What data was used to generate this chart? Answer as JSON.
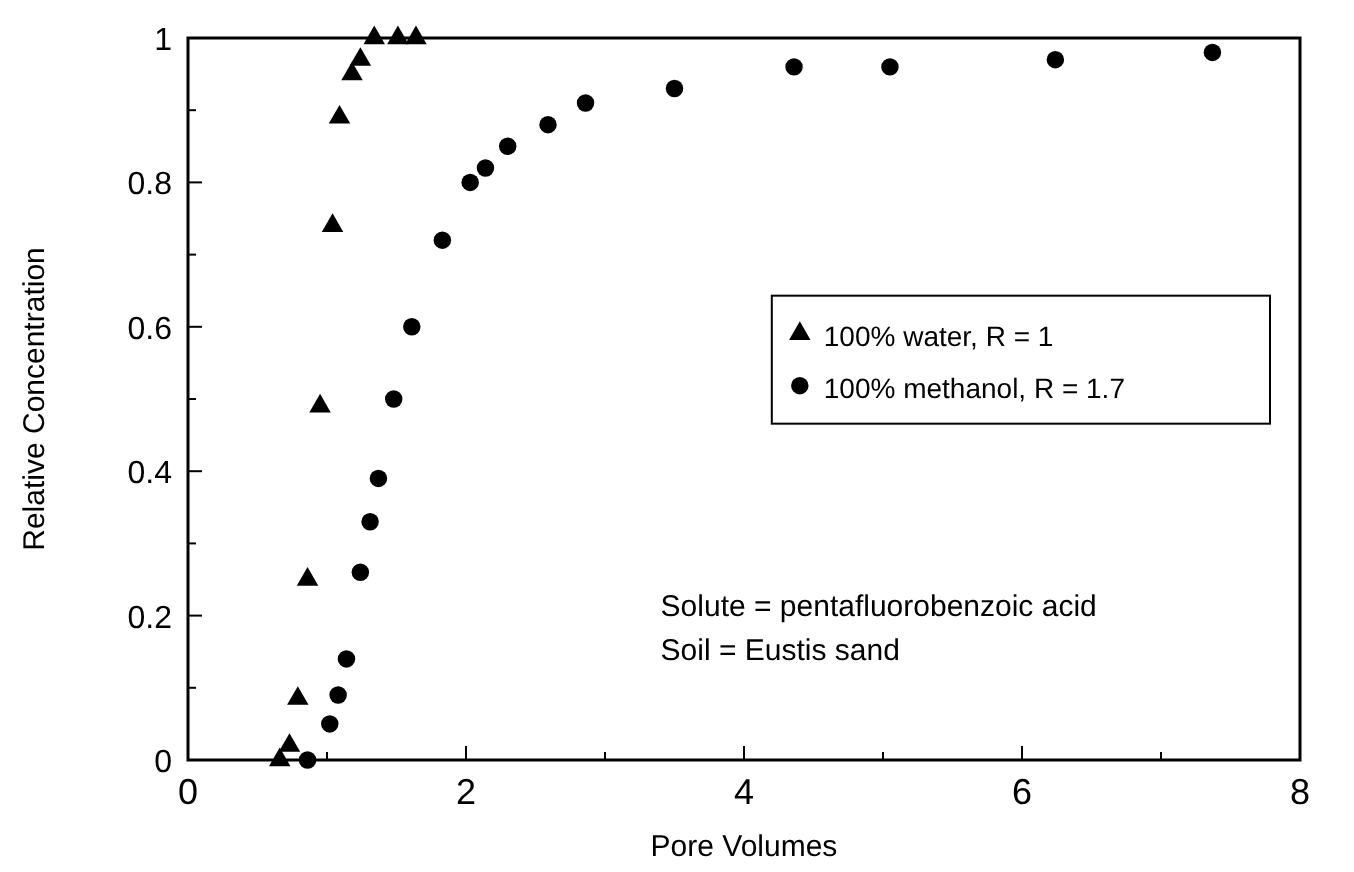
{
  "chart_data": {
    "type": "scatter",
    "xlabel": "Pore Volumes",
    "ylabel": "Relative Concentration",
    "xlim": [
      0,
      8
    ],
    "ylim": [
      0,
      1
    ],
    "xticks": [
      0,
      {
        "value": 1,
        "label": null
      },
      2,
      {
        "value": 3,
        "label": null
      },
      4,
      {
        "value": 5,
        "label": null
      },
      6,
      {
        "value": 7,
        "label": null
      },
      8
    ],
    "yticks": [
      0,
      {
        "value": 0.1,
        "label": null
      },
      0.2,
      {
        "value": 0.3,
        "label": null
      },
      0.4,
      {
        "value": 0.5,
        "label": null
      },
      0.6,
      {
        "value": 0.7,
        "label": null
      },
      0.8,
      {
        "value": 0.9,
        "label": null
      },
      1
    ],
    "legend": "right",
    "grid": false,
    "series": [
      {
        "name": "100% water, R = 1",
        "color": "#000000",
        "marker": "triangle",
        "x": [
          0.66,
          0.73,
          0.79,
          0.86,
          0.95,
          1.04,
          1.09,
          1.18,
          1.24,
          1.34,
          1.51,
          1.64
        ],
        "values": [
          0,
          0.02,
          0.085,
          0.25,
          0.49,
          0.74,
          0.89,
          0.95,
          0.97,
          1,
          1,
          1
        ]
      },
      {
        "name": "100% methanol, R = 1.7",
        "color": "#000000",
        "marker": "circle",
        "x": [
          0.86,
          1.02,
          1.08,
          1.14,
          1.24,
          1.31,
          1.37,
          1.48,
          1.61,
          1.83,
          2.03,
          2.14,
          2.3,
          2.59,
          2.86,
          3.5,
          4.36,
          5.05,
          6.24,
          7.37
        ],
        "values": [
          0,
          0.05,
          0.09,
          0.14,
          0.26,
          0.33,
          0.39,
          0.5,
          0.6,
          0.72,
          0.8,
          0.82,
          0.85,
          0.88,
          0.91,
          0.93,
          0.96,
          0.96,
          0.97,
          0.98
        ]
      }
    ],
    "annotations": [
      "Solute = pentafluorobenzoic acid",
      "Soil = Eustis sand"
    ]
  }
}
